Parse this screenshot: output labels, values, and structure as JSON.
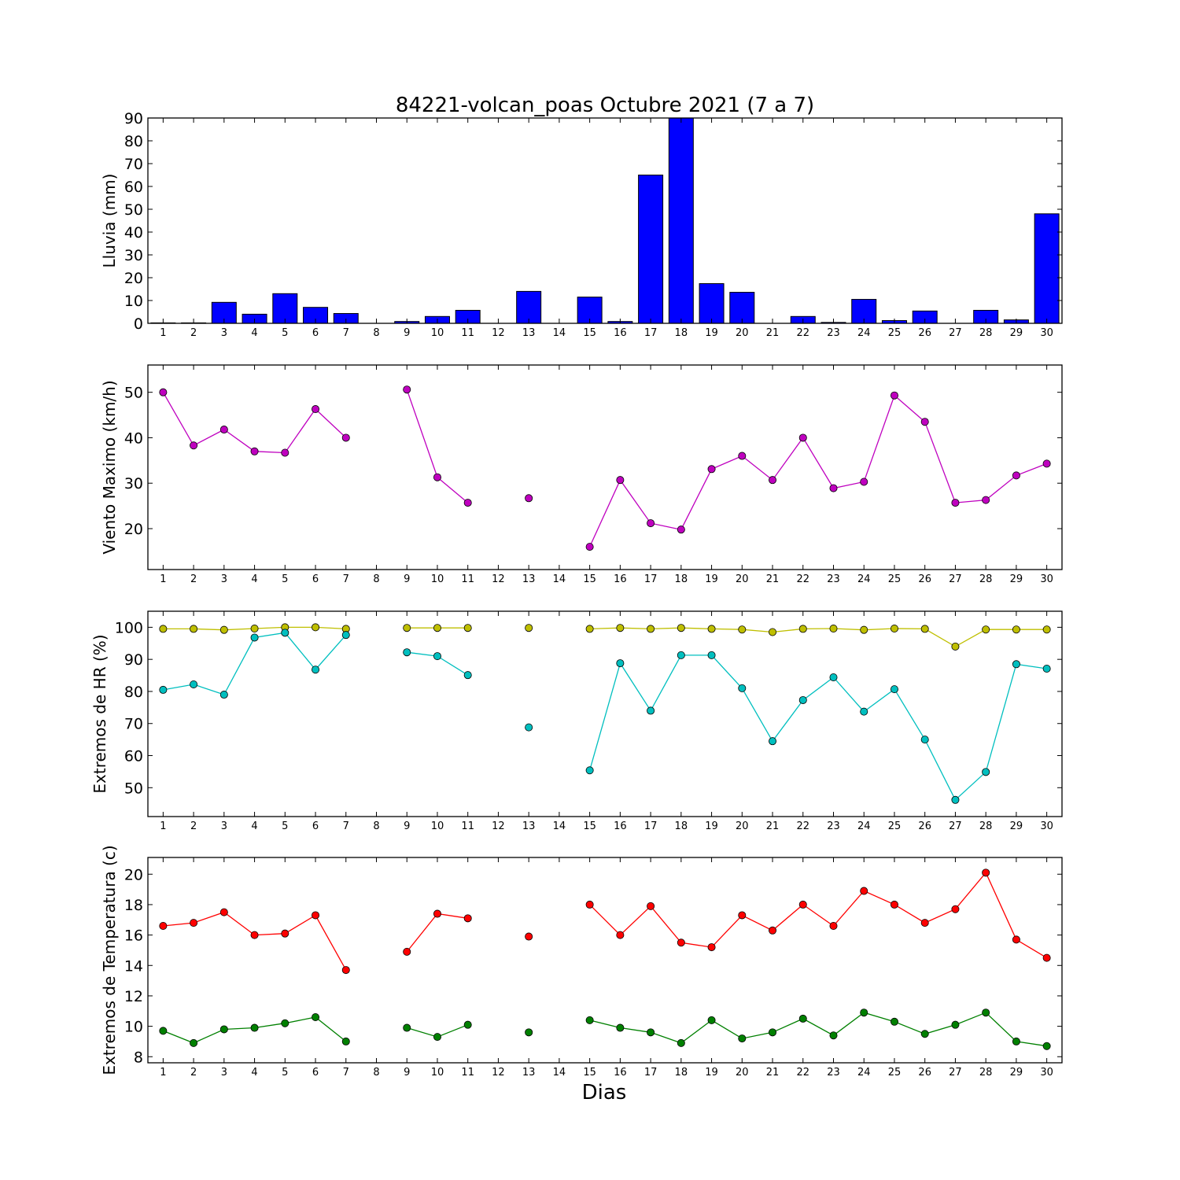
{
  "chart_data": [
    {
      "type": "bar",
      "title": "84221-volcan_poas Octubre 2021  (7 a 7)",
      "ylabel": "Lluvia (mm)",
      "xlabel": "",
      "ylim": [
        0,
        90
      ],
      "yticks": [
        0,
        10,
        20,
        30,
        40,
        50,
        60,
        70,
        80,
        90
      ],
      "xlim": [
        0.5,
        30.5
      ],
      "categories": [
        1,
        2,
        3,
        4,
        5,
        6,
        7,
        8,
        9,
        10,
        11,
        12,
        13,
        14,
        15,
        16,
        17,
        18,
        19,
        20,
        21,
        22,
        23,
        24,
        25,
        26,
        27,
        28,
        29,
        30
      ],
      "series": [
        {
          "color": "#0000ff",
          "values": [
            0.2,
            0.2,
            9.2,
            4.0,
            13.0,
            7.0,
            4.3,
            0,
            0.8,
            3.0,
            5.7,
            0,
            14.0,
            0,
            11.5,
            0.8,
            65.0,
            91.0,
            17.4,
            13.6,
            0,
            3.0,
            0.4,
            10.5,
            1.2,
            5.4,
            0,
            5.7,
            1.5,
            48.0
          ]
        }
      ],
      "grid": false
    },
    {
      "type": "line",
      "title": "",
      "ylabel": "Viento Maximo (km/h)",
      "xlabel": "",
      "ylim": [
        11,
        56
      ],
      "yticks": [
        20,
        30,
        40,
        50
      ],
      "xlim": [
        0.5,
        30.5
      ],
      "categories": [
        1,
        2,
        3,
        4,
        5,
        6,
        7,
        8,
        9,
        10,
        11,
        12,
        13,
        14,
        15,
        16,
        17,
        18,
        19,
        20,
        21,
        22,
        23,
        24,
        25,
        26,
        27,
        28,
        29,
        30
      ],
      "series": [
        {
          "color": "#bf00bf",
          "values": [
            50.0,
            38.3,
            41.8,
            37.0,
            36.7,
            46.3,
            40.0,
            null,
            50.6,
            31.3,
            25.7,
            null,
            26.7,
            null,
            16.0,
            30.7,
            21.2,
            19.8,
            33.1,
            36.0,
            30.7,
            40.0,
            28.9,
            30.3,
            49.3,
            43.5,
            25.7,
            26.3,
            31.7,
            34.3
          ]
        }
      ],
      "grid": false
    },
    {
      "type": "line",
      "title": "",
      "ylabel": "Extremos de HR (%)",
      "xlabel": "",
      "ylim": [
        41,
        105
      ],
      "yticks": [
        50,
        60,
        70,
        80,
        90,
        100
      ],
      "xlim": [
        0.5,
        30.5
      ],
      "categories": [
        1,
        2,
        3,
        4,
        5,
        6,
        7,
        8,
        9,
        10,
        11,
        12,
        13,
        14,
        15,
        16,
        17,
        18,
        19,
        20,
        21,
        22,
        23,
        24,
        25,
        26,
        27,
        28,
        29,
        30
      ],
      "series": [
        {
          "color": "#bfbf00",
          "values": [
            99.5,
            99.5,
            99.2,
            99.6,
            100.0,
            100.0,
            99.5,
            null,
            99.8,
            99.8,
            99.8,
            null,
            99.8,
            null,
            99.5,
            99.8,
            99.5,
            99.8,
            99.5,
            99.3,
            98.5,
            99.5,
            99.6,
            99.2,
            99.6,
            99.5,
            94.0,
            99.3,
            99.3,
            99.3
          ]
        },
        {
          "color": "#00bfbf",
          "values": [
            80.5,
            82.2,
            79.0,
            96.8,
            98.3,
            86.8,
            97.6,
            null,
            92.2,
            91.0,
            85.1,
            null,
            68.8,
            null,
            55.4,
            88.8,
            74.0,
            91.3,
            91.3,
            81.0,
            64.5,
            77.3,
            84.4,
            73.7,
            80.7,
            65.0,
            46.2,
            54.9,
            88.5,
            87.1
          ]
        }
      ],
      "grid": false
    },
    {
      "type": "line",
      "title": "",
      "ylabel": "Extremos de Temperatura (c)",
      "xlabel": "Dias",
      "ylim": [
        7.6,
        21.1
      ],
      "yticks": [
        8,
        10,
        12,
        14,
        16,
        18,
        20
      ],
      "xlim": [
        0.5,
        30.5
      ],
      "categories": [
        1,
        2,
        3,
        4,
        5,
        6,
        7,
        8,
        9,
        10,
        11,
        12,
        13,
        14,
        15,
        16,
        17,
        18,
        19,
        20,
        21,
        22,
        23,
        24,
        25,
        26,
        27,
        28,
        29,
        30
      ],
      "series": [
        {
          "color": "#ff0000",
          "values": [
            16.6,
            16.8,
            17.5,
            16.0,
            16.1,
            17.3,
            13.7,
            null,
            14.9,
            17.4,
            17.1,
            null,
            15.9,
            null,
            18.0,
            16.0,
            17.9,
            15.5,
            15.2,
            17.3,
            16.3,
            18.0,
            16.6,
            18.9,
            18.0,
            16.8,
            17.7,
            20.1,
            15.7,
            14.5
          ]
        },
        {
          "color": "#008000",
          "values": [
            9.7,
            8.9,
            9.8,
            9.9,
            10.2,
            10.6,
            9.0,
            null,
            9.9,
            9.3,
            10.1,
            null,
            9.6,
            null,
            10.4,
            9.9,
            9.6,
            8.9,
            10.4,
            9.2,
            9.6,
            10.5,
            9.4,
            10.9,
            10.3,
            9.5,
            10.1,
            10.9,
            9.0,
            8.7
          ]
        }
      ],
      "grid": false
    }
  ]
}
